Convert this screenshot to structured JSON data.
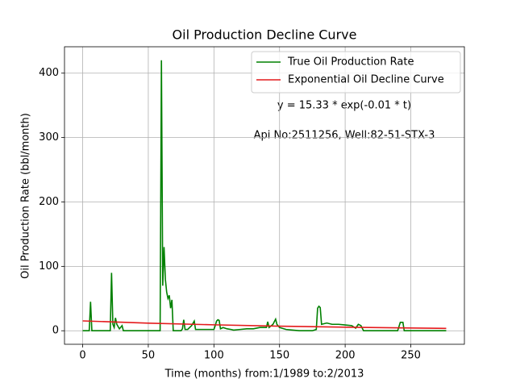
{
  "chart_data": {
    "type": "line",
    "title": "Oil Production Decline Curve",
    "xlabel": "Time (months) from:1/1989 to:2/2013",
    "ylabel": "Oil Production Rate (bbl/month)",
    "annotations": [
      "y = 15.33 * exp(-0.01 * t)",
      "Api No:2511256, Well:82-51-STX-3"
    ],
    "xlim": [
      -13.85,
      290.85
    ],
    "ylim": [
      -21,
      441
    ],
    "xticks": [
      0,
      50,
      100,
      150,
      200,
      250
    ],
    "yticks": [
      0,
      100,
      200,
      300,
      400
    ],
    "grid": true,
    "legend": "upper right",
    "series": [
      {
        "name": "True Oil Production Rate",
        "color": "#008000",
        "x": [
          0,
          5,
          6,
          7,
          21,
          22,
          23,
          24,
          25,
          26,
          28,
          30,
          31,
          59,
          60,
          61,
          62,
          63,
          64,
          65,
          66,
          67,
          68,
          69,
          75,
          76,
          77,
          78,
          80,
          83,
          85,
          86,
          100,
          101,
          102,
          103,
          104,
          105,
          107,
          110,
          113,
          115,
          120,
          125,
          130,
          135,
          140,
          141,
          142,
          145,
          147,
          148,
          150,
          155,
          160,
          165,
          175,
          178,
          179,
          180,
          181,
          182,
          186,
          190,
          195,
          200,
          205,
          208,
          210,
          212,
          214,
          240,
          242,
          244,
          245,
          277
        ],
        "values": [
          0,
          0,
          45,
          0,
          0,
          90,
          10,
          5,
          20,
          10,
          3,
          8,
          0,
          0,
          420,
          70,
          130,
          80,
          60,
          50,
          55,
          35,
          48,
          0,
          0,
          3,
          17,
          2,
          2,
          8,
          15,
          2,
          2,
          8,
          15,
          17,
          16,
          3,
          5,
          3,
          2,
          1,
          2,
          3,
          3,
          5,
          5,
          14,
          5,
          10,
          18,
          10,
          5,
          2,
          1,
          0,
          0,
          2,
          35,
          38,
          36,
          10,
          12,
          10,
          10,
          9,
          8,
          4,
          10,
          8,
          0,
          0,
          13,
          13,
          0,
          0
        ]
      },
      {
        "name": "Exponential Oil Decline Curve",
        "color": "#e41a1c",
        "x": [
          0,
          50,
          100,
          150,
          200,
          250,
          277
        ],
        "values": [
          15.3,
          11.8,
          9.2,
          7.1,
          5.5,
          4.3,
          3.7
        ]
      }
    ]
  }
}
